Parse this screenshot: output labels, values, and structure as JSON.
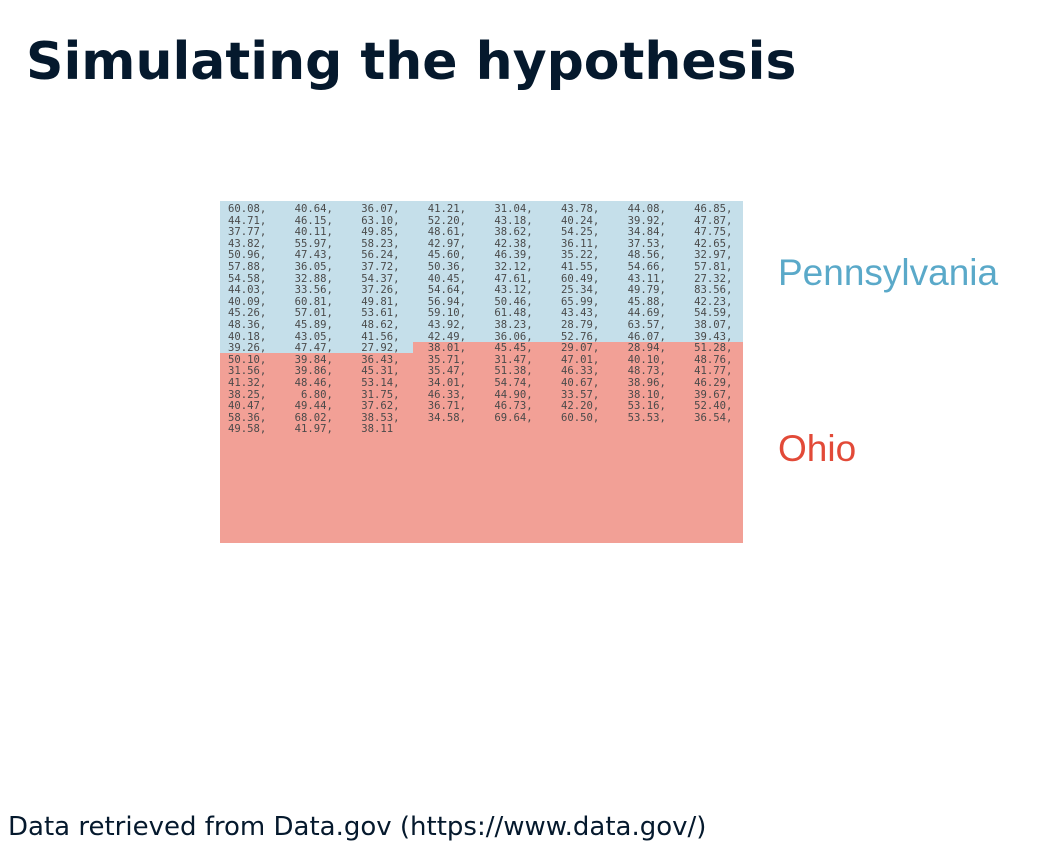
{
  "title": "Simulating the hypothesis",
  "labels": {
    "pennsylvania": "Pennsylvania",
    "ohio": "Ohio"
  },
  "colors": {
    "pennsylvania_bg": "#c5dfea",
    "ohio_bg": "#f2a096",
    "pennsylvania_text": "#5aa9c9",
    "ohio_text": "#e24a38",
    "title_text": "#05192d"
  },
  "rows": [
    [
      "60.08,",
      "40.64,",
      "36.07,",
      "41.21,",
      "31.04,",
      "43.78,",
      "44.08,",
      "46.85,"
    ],
    [
      "44.71,",
      "46.15,",
      "63.10,",
      "52.20,",
      "43.18,",
      "40.24,",
      "39.92,",
      "47.87,"
    ],
    [
      "37.77,",
      "40.11,",
      "49.85,",
      "48.61,",
      "38.62,",
      "54.25,",
      "34.84,",
      "47.75,"
    ],
    [
      "43.82,",
      "55.97,",
      "58.23,",
      "42.97,",
      "42.38,",
      "36.11,",
      "37.53,",
      "42.65,"
    ],
    [
      "50.96,",
      "47.43,",
      "56.24,",
      "45.60,",
      "46.39,",
      "35.22,",
      "48.56,",
      "32.97,"
    ],
    [
      "57.88,",
      "36.05,",
      "37.72,",
      "50.36,",
      "32.12,",
      "41.55,",
      "54.66,",
      "57.81,"
    ],
    [
      "54.58,",
      "32.88,",
      "54.37,",
      "40.45,",
      "47.61,",
      "60.49,",
      "43.11,",
      "27.32,"
    ],
    [
      "44.03,",
      "33.56,",
      "37.26,",
      "54.64,",
      "43.12,",
      "25.34,",
      "49.79,",
      "83.56,"
    ],
    [
      "40.09,",
      "60.81,",
      "49.81,",
      "56.94,",
      "50.46,",
      "65.99,",
      "45.88,",
      "42.23,"
    ],
    [
      "45.26,",
      "57.01,",
      "53.61,",
      "59.10,",
      "61.48,",
      "43.43,",
      "44.69,",
      "54.59,"
    ],
    [
      "48.36,",
      "45.89,",
      "48.62,",
      "43.92,",
      "38.23,",
      "28.79,",
      "63.57,",
      "38.07,"
    ],
    [
      "40.18,",
      "43.05,",
      "41.56,",
      "42.49,",
      "36.06,",
      "52.76,",
      "46.07,",
      "39.43,"
    ],
    [
      "39.26,",
      "47.47,",
      "27.92,",
      "38.01,",
      "45.45,",
      "29.07,",
      "28.94,",
      "51.28,"
    ],
    [
      "50.10,",
      "39.84,",
      "36.43,",
      "35.71,",
      "31.47,",
      "47.01,",
      "40.10,",
      "48.76,"
    ],
    [
      "31.56,",
      "39.86,",
      "45.31,",
      "35.47,",
      "51.38,",
      "46.33,",
      "48.73,",
      "41.77,"
    ],
    [
      "41.32,",
      "48.46,",
      "53.14,",
      "34.01,",
      "54.74,",
      "40.67,",
      "38.96,",
      "46.29,"
    ],
    [
      "38.25,",
      " 6.80,",
      "31.75,",
      "46.33,",
      "44.90,",
      "33.57,",
      "38.10,",
      "39.67,"
    ],
    [
      "40.47,",
      "49.44,",
      "37.62,",
      "36.71,",
      "46.73,",
      "42.20,",
      "53.16,",
      "52.40,"
    ],
    [
      "58.36,",
      "68.02,",
      "38.53,",
      "34.58,",
      "69.64,",
      "60.50,",
      "53.53,",
      "36.54,"
    ],
    [
      "49.58,",
      "41.97,",
      "38.11"
    ]
  ],
  "footnote": "Data retrieved from Data.gov (https://www.data.gov/)"
}
